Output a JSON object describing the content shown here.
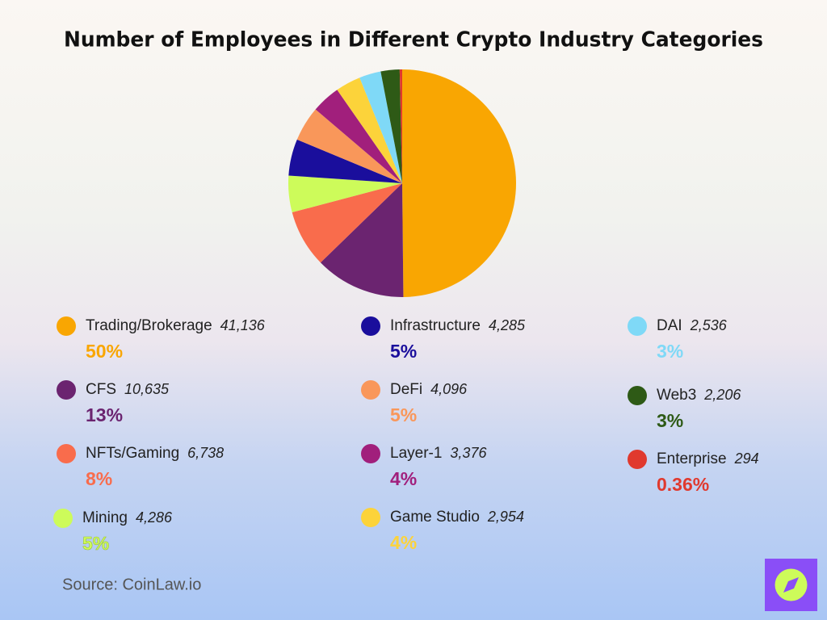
{
  "chart_data": {
    "type": "pie",
    "title": "Number of Employees in Different Crypto Industry Categories",
    "categories": [
      "Trading/Brokerage",
      "CFS",
      "NFTs/Gaming",
      "Mining",
      "Infrastructure",
      "DeFi",
      "Layer-1",
      "Game Studio",
      "DAI",
      "Web3",
      "Enterprise"
    ],
    "values": [
      41136,
      10635,
      6738,
      4286,
      4285,
      4096,
      3376,
      2954,
      2536,
      2206,
      294
    ],
    "value_labels": [
      "41,136",
      "10,635",
      "6,738",
      "4,286",
      "4,285",
      "4,096",
      "3,376",
      "2,954",
      "2,536",
      "2,206",
      "294"
    ],
    "shares": [
      50,
      13,
      8,
      5,
      5,
      5,
      4,
      4,
      3,
      3,
      0.36
    ],
    "share_labels": [
      "50%",
      "13%",
      "8%",
      "5%",
      "5%",
      "5%",
      "4%",
      "4%",
      "3%",
      "3%",
      "0.36%"
    ],
    "colors": [
      "#f9a602",
      "#6b2470",
      "#f96c4c",
      "#cdfb5a",
      "#1a0e9c",
      "#f9975a",
      "#a11f7c",
      "#fcd33a",
      "#7fd9f7",
      "#2e5a16",
      "#e0392e"
    ],
    "source": "Source: CoinLaw.io"
  }
}
